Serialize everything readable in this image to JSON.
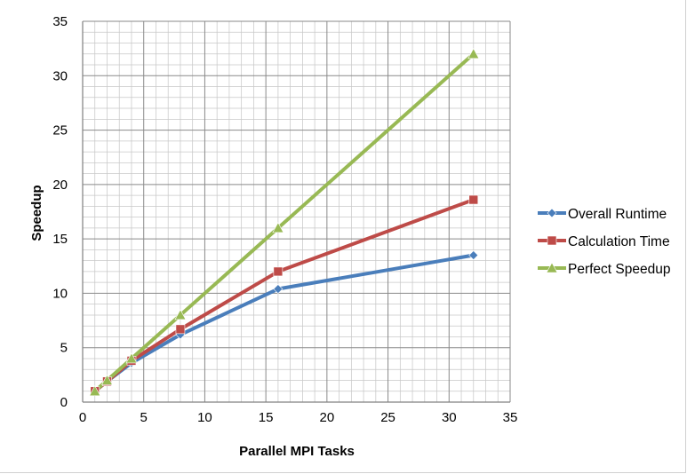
{
  "chart_data": {
    "type": "line",
    "title": "",
    "xlabel": "Parallel MPI Tasks",
    "ylabel": "Speedup",
    "xlim": [
      0,
      35
    ],
    "ylim": [
      0,
      35
    ],
    "x_ticks": [
      "0",
      "5",
      "10",
      "15",
      "20",
      "25",
      "30",
      "35"
    ],
    "y_ticks": [
      "0",
      "5",
      "10",
      "15",
      "20",
      "25",
      "30",
      "35"
    ],
    "grid": true,
    "legend_position": "right",
    "x": [
      1,
      2,
      4,
      8,
      16,
      32
    ],
    "series": [
      {
        "name": "Overall Runtime",
        "values": [
          1.0,
          1.9,
          3.6,
          6.2,
          10.4,
          13.5
        ],
        "color": "#4a7ebb",
        "marker": "diamond"
      },
      {
        "name": "Calculation Time",
        "values": [
          1.0,
          1.9,
          3.8,
          6.7,
          12.0,
          18.6
        ],
        "color": "#be4b48",
        "marker": "square"
      },
      {
        "name": "Perfect Speedup",
        "values": [
          1,
          2,
          4,
          8,
          16,
          32
        ],
        "color": "#98b954",
        "marker": "triangle"
      }
    ]
  }
}
